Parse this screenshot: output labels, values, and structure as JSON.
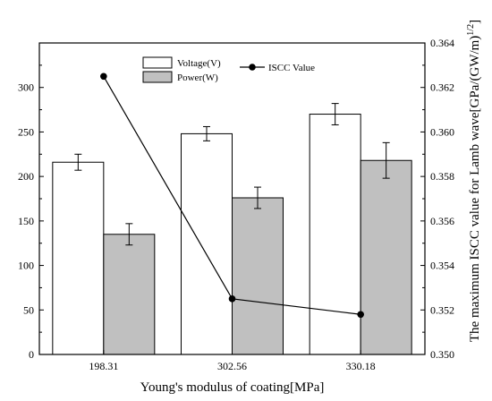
{
  "chart_data": {
    "type": "bar",
    "categories": [
      "198.31",
      "302.56",
      "330.18"
    ],
    "xlabel": "Young's modulus of coating[MPa]",
    "ylabel_left": "",
    "ylabel_right": "The maximum ISCC value for Lamb wave[GPa/(GW/m)^(1/2)]",
    "ylim_left": [
      0,
      350
    ],
    "yticks_left": [
      0,
      50,
      100,
      150,
      200,
      250,
      300
    ],
    "ylim_right": [
      0.35,
      0.364
    ],
    "yticks_right": [
      "0.350",
      "0.352",
      "0.354",
      "0.356",
      "0.358",
      "0.360",
      "0.362",
      "0.364"
    ],
    "bar_series": [
      {
        "name": "Voltage(V)",
        "values": [
          216,
          248,
          270
        ],
        "errors": [
          9,
          8,
          12
        ],
        "color": "#ffffff"
      },
      {
        "name": "Power(W)",
        "values": [
          135,
          176,
          218
        ],
        "errors": [
          12,
          12,
          20
        ],
        "color": "#c0c0c0"
      }
    ],
    "line_series": {
      "name": "ISCC Value",
      "axis": "right",
      "values": [
        0.3625,
        0.3525,
        0.3518
      ],
      "color": "#000000"
    },
    "legend_position": "top"
  }
}
